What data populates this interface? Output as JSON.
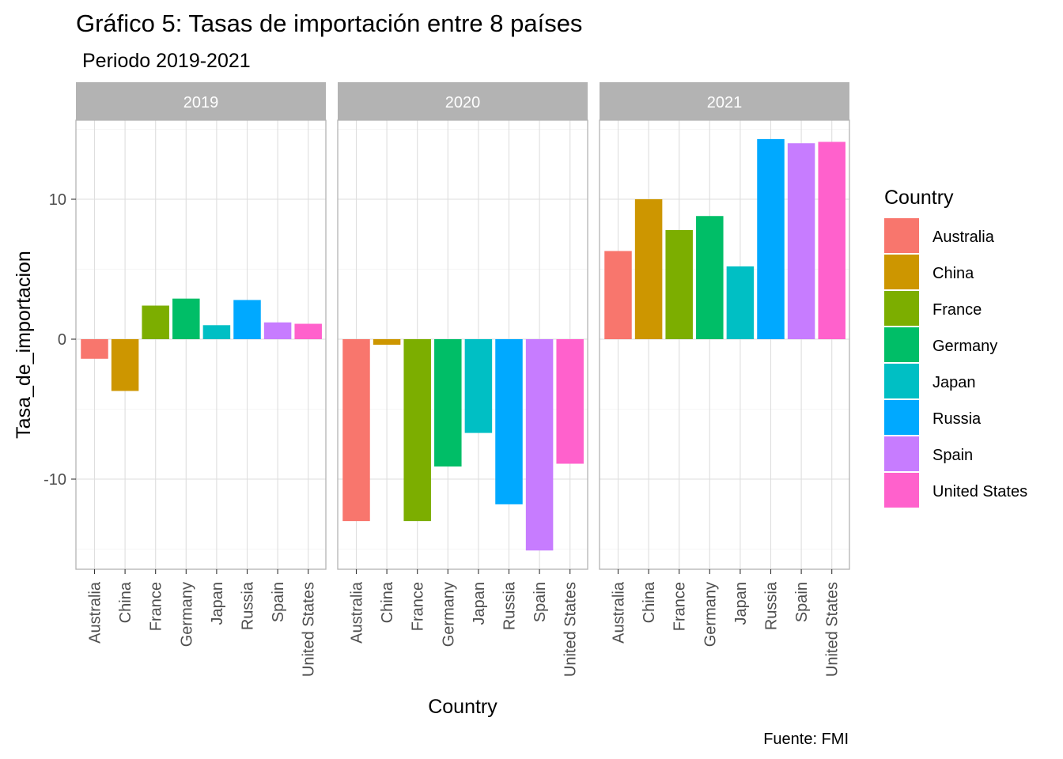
{
  "chart_data": {
    "type": "bar",
    "title": "Gráfico 5: Tasas de importación entre 8 países",
    "subtitle": "Periodo 2019-2021",
    "caption": "Fuente: FMI",
    "xlabel": "Country",
    "ylabel": "Tasa_de_importacion",
    "ylim": [
      -16.0,
      15.0
    ],
    "yticks": [
      10,
      0,
      -10
    ],
    "ytick_labels": [
      "10",
      "0",
      "-10"
    ],
    "categories": [
      "Australia",
      "China",
      "France",
      "Germany",
      "Japan",
      "Russia",
      "Spain",
      "United States"
    ],
    "colors": [
      "#F8766D",
      "#CD9600",
      "#7CAE00",
      "#00BE67",
      "#00BFC4",
      "#00A9FF",
      "#C77CFF",
      "#FF61CC"
    ],
    "legend": {
      "title": "Country",
      "position": "right"
    },
    "grid": true,
    "panels": [
      {
        "label": "2019",
        "values": [
          -1.4,
          -3.7,
          2.4,
          2.9,
          1.0,
          2.8,
          1.2,
          1.1
        ]
      },
      {
        "label": "2020",
        "values": [
          -13.0,
          -0.4,
          -13.0,
          -9.1,
          -6.7,
          -11.8,
          -15.1,
          -8.9
        ]
      },
      {
        "label": "2021",
        "values": [
          6.3,
          10.0,
          7.8,
          8.8,
          5.2,
          14.3,
          14.0,
          14.1
        ]
      }
    ]
  }
}
